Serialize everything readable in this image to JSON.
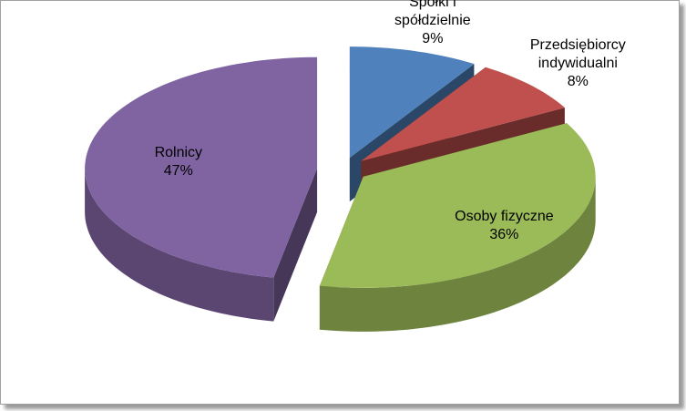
{
  "chart_data": {
    "type": "pie",
    "categories": [
      "Spółki i spółdzielnie",
      "Przedsiębiorcy indywidualni",
      "Osoby fizyczne",
      "Rolnicy"
    ],
    "values": [
      9,
      8,
      36,
      47
    ],
    "value_labels": [
      "9%",
      "8%",
      "36%",
      "47%"
    ],
    "colors": [
      "#4f81bd",
      "#c0504d",
      "#9bbb59",
      "#8064a2"
    ]
  }
}
